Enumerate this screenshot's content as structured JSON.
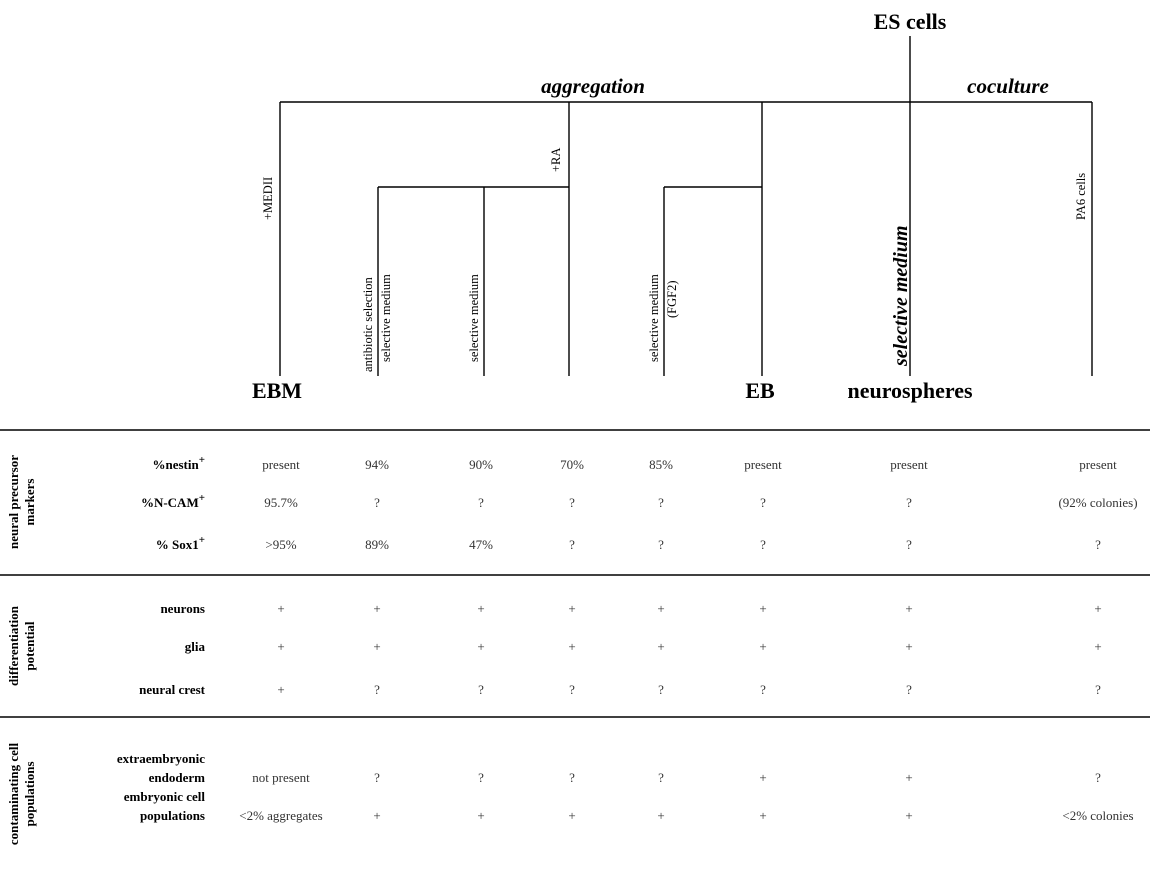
{
  "tree": {
    "root": "ES cells",
    "branches": {
      "aggregation": "aggregation",
      "coculture": "coculture"
    },
    "conditions": {
      "medii": "+MEDII",
      "ra": "+RA",
      "antibiotic_line1": "antibiotic selection",
      "antibiotic_line2": "selective medium",
      "selective_medium_a": "selective medium",
      "selective_fgf2_line1": "selective medium",
      "selective_fgf2_line2": "(FGF2)",
      "selective_medium_big": "selective medium",
      "pa6": "PA6 cells"
    },
    "endpoints": {
      "ebm": "EBM",
      "eb": "EB",
      "neurospheres": "neurospheres"
    }
  },
  "table": {
    "sections": [
      {
        "id": "precursor",
        "label_lines": [
          "neural precursor",
          "markers"
        ],
        "rows": [
          {
            "label": "%nestin",
            "sup": "+",
            "cells": [
              "present",
              "94%",
              "90%",
              "70%",
              "85%",
              "present",
              "present",
              "present"
            ]
          },
          {
            "label": "%N-CAM",
            "sup": "+",
            "cells": [
              "95.7%",
              "?",
              "?",
              "?",
              "?",
              "?",
              "?",
              "(92% colonies)"
            ]
          },
          {
            "label": "% Sox1",
            "sup": "+",
            "cells": [
              ">95%",
              "89%",
              "47%",
              "?",
              "?",
              "?",
              "?",
              "?"
            ]
          }
        ]
      },
      {
        "id": "potential",
        "label_lines": [
          "differentiation",
          "potential"
        ],
        "rows": [
          {
            "label": "neurons",
            "sup": "",
            "cells": [
              "+",
              "+",
              "+",
              "+",
              "+",
              "+",
              "+",
              "+"
            ]
          },
          {
            "label": "glia",
            "sup": "",
            "cells": [
              "+",
              "+",
              "+",
              "+",
              "+",
              "+",
              "+",
              "+"
            ]
          },
          {
            "label": "neural crest",
            "sup": "",
            "cells": [
              "+",
              "?",
              "?",
              "?",
              "?",
              "?",
              "?",
              "?"
            ]
          }
        ]
      },
      {
        "id": "contaminating",
        "label_lines": [
          "contaminating cell",
          "populations"
        ],
        "rows": [
          {
            "label_lines": [
              "extraembryonic",
              "endoderm"
            ],
            "cells": [
              "not present",
              "?",
              "?",
              "?",
              "?",
              "+",
              "+",
              "?"
            ]
          },
          {
            "label_lines": [
              "embryonic cell",
              "populations"
            ],
            "cells": [
              "<2% aggregates",
              "+",
              "+",
              "+",
              "+",
              "+",
              "+",
              "<2% colonies"
            ]
          }
        ]
      }
    ]
  }
}
